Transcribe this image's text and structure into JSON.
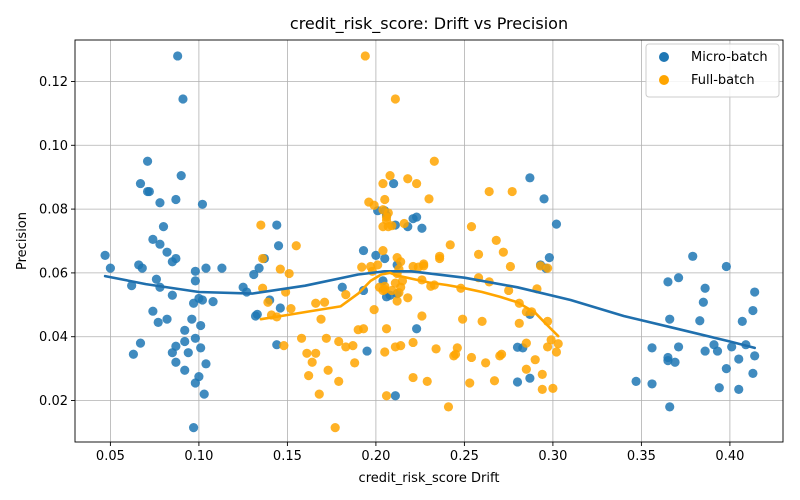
{
  "chart_data": {
    "type": "scatter",
    "title": "credit_risk_score: Drift vs Precision",
    "xlabel": "credit_risk_score Drift",
    "ylabel": "Precision",
    "xlim": [
      0.03,
      0.43
    ],
    "ylim": [
      0.007,
      0.133
    ],
    "xticks": [
      "0.05",
      "0.10",
      "0.15",
      "0.20",
      "0.25",
      "0.30",
      "0.35",
      "0.40"
    ],
    "yticks": [
      "0.02",
      "0.04",
      "0.06",
      "0.08",
      "0.10",
      "0.12"
    ],
    "grid": true,
    "legend_position": "top-right",
    "series": [
      {
        "name": "Micro-batch",
        "color": "#1f77b4",
        "trend": [
          [
            0.047,
            0.059
          ],
          [
            0.07,
            0.0565
          ],
          [
            0.1,
            0.054
          ],
          [
            0.13,
            0.0535
          ],
          [
            0.16,
            0.056
          ],
          [
            0.19,
            0.0595
          ],
          [
            0.205,
            0.0605
          ],
          [
            0.22,
            0.0605
          ],
          [
            0.25,
            0.0585
          ],
          [
            0.28,
            0.0555
          ],
          [
            0.31,
            0.0515
          ],
          [
            0.34,
            0.0465
          ],
          [
            0.37,
            0.0425
          ],
          [
            0.4,
            0.0385
          ],
          [
            0.414,
            0.0365
          ]
        ],
        "points": [
          [
            0.088,
            0.128
          ],
          [
            0.091,
            0.1145
          ],
          [
            0.071,
            0.095
          ],
          [
            0.09,
            0.0905
          ],
          [
            0.067,
            0.088
          ],
          [
            0.071,
            0.0855
          ],
          [
            0.072,
            0.0855
          ],
          [
            0.087,
            0.083
          ],
          [
            0.078,
            0.082
          ],
          [
            0.102,
            0.0815
          ],
          [
            0.08,
            0.0745
          ],
          [
            0.074,
            0.0705
          ],
          [
            0.078,
            0.069
          ],
          [
            0.082,
            0.0665
          ],
          [
            0.047,
            0.0655
          ],
          [
            0.087,
            0.0645
          ],
          [
            0.085,
            0.0635
          ],
          [
            0.066,
            0.0625
          ],
          [
            0.068,
            0.0615
          ],
          [
            0.05,
            0.0615
          ],
          [
            0.098,
            0.0605
          ],
          [
            0.104,
            0.0615
          ],
          [
            0.113,
            0.0615
          ],
          [
            0.076,
            0.058
          ],
          [
            0.098,
            0.0575
          ],
          [
            0.062,
            0.056
          ],
          [
            0.078,
            0.0555
          ],
          [
            0.085,
            0.053
          ],
          [
            0.1,
            0.052
          ],
          [
            0.097,
            0.0505
          ],
          [
            0.102,
            0.0515
          ],
          [
            0.108,
            0.051
          ],
          [
            0.074,
            0.048
          ],
          [
            0.082,
            0.0455
          ],
          [
            0.096,
            0.0455
          ],
          [
            0.077,
            0.0445
          ],
          [
            0.101,
            0.0435
          ],
          [
            0.092,
            0.042
          ],
          [
            0.098,
            0.0395
          ],
          [
            0.067,
            0.038
          ],
          [
            0.092,
            0.0385
          ],
          [
            0.087,
            0.037
          ],
          [
            0.101,
            0.0365
          ],
          [
            0.085,
            0.035
          ],
          [
            0.094,
            0.035
          ],
          [
            0.063,
            0.0345
          ],
          [
            0.087,
            0.032
          ],
          [
            0.104,
            0.0315
          ],
          [
            0.092,
            0.0295
          ],
          [
            0.1,
            0.0275
          ],
          [
            0.098,
            0.0255
          ],
          [
            0.103,
            0.022
          ],
          [
            0.097,
            0.0115
          ],
          [
            0.144,
            0.075
          ],
          [
            0.145,
            0.0685
          ],
          [
            0.137,
            0.0645
          ],
          [
            0.134,
            0.0615
          ],
          [
            0.131,
            0.0595
          ],
          [
            0.125,
            0.0555
          ],
          [
            0.127,
            0.054
          ],
          [
            0.14,
            0.0515
          ],
          [
            0.146,
            0.049
          ],
          [
            0.132,
            0.0465
          ],
          [
            0.133,
            0.047
          ],
          [
            0.144,
            0.0375
          ],
          [
            0.193,
            0.067
          ],
          [
            0.181,
            0.0555
          ],
          [
            0.193,
            0.0545
          ],
          [
            0.195,
            0.0355
          ],
          [
            0.201,
            0.0795
          ],
          [
            0.205,
            0.0795
          ],
          [
            0.206,
            0.078
          ],
          [
            0.21,
            0.088
          ],
          [
            0.211,
            0.075
          ],
          [
            0.218,
            0.0745
          ],
          [
            0.221,
            0.077
          ],
          [
            0.223,
            0.0775
          ],
          [
            0.226,
            0.074
          ],
          [
            0.2,
            0.0655
          ],
          [
            0.205,
            0.0645
          ],
          [
            0.212,
            0.0625
          ],
          [
            0.204,
            0.0575
          ],
          [
            0.206,
            0.0525
          ],
          [
            0.208,
            0.053
          ],
          [
            0.212,
            0.0535
          ],
          [
            0.223,
            0.0425
          ],
          [
            0.211,
            0.0215
          ],
          [
            0.287,
            0.0898
          ],
          [
            0.295,
            0.0832
          ],
          [
            0.302,
            0.0753
          ],
          [
            0.298,
            0.0648
          ],
          [
            0.293,
            0.0625
          ],
          [
            0.296,
            0.0615
          ],
          [
            0.287,
            0.047
          ],
          [
            0.28,
            0.0367
          ],
          [
            0.283,
            0.0365
          ],
          [
            0.287,
            0.027
          ],
          [
            0.28,
            0.0258
          ],
          [
            0.379,
            0.0652
          ],
          [
            0.365,
            0.0572
          ],
          [
            0.371,
            0.0585
          ],
          [
            0.398,
            0.062
          ],
          [
            0.386,
            0.0552
          ],
          [
            0.385,
            0.0508
          ],
          [
            0.413,
            0.0482
          ],
          [
            0.414,
            0.054
          ],
          [
            0.407,
            0.0448
          ],
          [
            0.383,
            0.045
          ],
          [
            0.366,
            0.0455
          ],
          [
            0.356,
            0.0365
          ],
          [
            0.371,
            0.0368
          ],
          [
            0.391,
            0.0375
          ],
          [
            0.386,
            0.0355
          ],
          [
            0.393,
            0.0355
          ],
          [
            0.401,
            0.0368
          ],
          [
            0.409,
            0.0375
          ],
          [
            0.365,
            0.0335
          ],
          [
            0.365,
            0.0325
          ],
          [
            0.369,
            0.032
          ],
          [
            0.405,
            0.033
          ],
          [
            0.414,
            0.034
          ],
          [
            0.398,
            0.03
          ],
          [
            0.413,
            0.0285
          ],
          [
            0.347,
            0.026
          ],
          [
            0.356,
            0.0252
          ],
          [
            0.394,
            0.024
          ],
          [
            0.405,
            0.0235
          ],
          [
            0.366,
            0.018
          ]
        ]
      },
      {
        "name": "Full-batch",
        "color": "#ffa500",
        "trend": [
          [
            0.135,
            0.0455
          ],
          [
            0.15,
            0.0468
          ],
          [
            0.165,
            0.0482
          ],
          [
            0.18,
            0.0495
          ],
          [
            0.19,
            0.0535
          ],
          [
            0.197,
            0.0575
          ],
          [
            0.203,
            0.0595
          ],
          [
            0.208,
            0.06
          ],
          [
            0.212,
            0.0592
          ],
          [
            0.22,
            0.0582
          ],
          [
            0.23,
            0.057
          ],
          [
            0.24,
            0.0562
          ],
          [
            0.25,
            0.0552
          ],
          [
            0.26,
            0.054
          ],
          [
            0.27,
            0.0525
          ],
          [
            0.28,
            0.0508
          ],
          [
            0.29,
            0.0475
          ],
          [
            0.297,
            0.0435
          ],
          [
            0.303,
            0.0402
          ]
        ],
        "points": [
          [
            0.194,
            0.128
          ],
          [
            0.211,
            0.1145
          ],
          [
            0.233,
            0.095
          ],
          [
            0.208,
            0.0905
          ],
          [
            0.218,
            0.0895
          ],
          [
            0.204,
            0.088
          ],
          [
            0.223,
            0.088
          ],
          [
            0.264,
            0.0855
          ],
          [
            0.277,
            0.0855
          ],
          [
            0.23,
            0.0832
          ],
          [
            0.205,
            0.083
          ],
          [
            0.196,
            0.0822
          ],
          [
            0.199,
            0.0812
          ],
          [
            0.204,
            0.0798
          ],
          [
            0.207,
            0.0788
          ],
          [
            0.206,
            0.0775
          ],
          [
            0.206,
            0.0765
          ],
          [
            0.216,
            0.0755
          ],
          [
            0.209,
            0.0748
          ],
          [
            0.135,
            0.075
          ],
          [
            0.204,
            0.0745
          ],
          [
            0.207,
            0.0745
          ],
          [
            0.254,
            0.0745
          ],
          [
            0.268,
            0.0702
          ],
          [
            0.242,
            0.0688
          ],
          [
            0.155,
            0.0685
          ],
          [
            0.204,
            0.067
          ],
          [
            0.272,
            0.0665
          ],
          [
            0.258,
            0.0658
          ],
          [
            0.212,
            0.0648
          ],
          [
            0.236,
            0.0652
          ],
          [
            0.236,
            0.0645
          ],
          [
            0.136,
            0.0645
          ],
          [
            0.214,
            0.0635
          ],
          [
            0.227,
            0.0628
          ],
          [
            0.201,
            0.0625
          ],
          [
            0.227,
            0.0622
          ],
          [
            0.221,
            0.062
          ],
          [
            0.224,
            0.0618
          ],
          [
            0.293,
            0.0622
          ],
          [
            0.297,
            0.0615
          ],
          [
            0.276,
            0.062
          ],
          [
            0.146,
            0.0612
          ],
          [
            0.192,
            0.0618
          ],
          [
            0.197,
            0.062
          ],
          [
            0.213,
            0.0612
          ],
          [
            0.151,
            0.0598
          ],
          [
            0.198,
            0.0605
          ],
          [
            0.212,
            0.0598
          ],
          [
            0.258,
            0.0585
          ],
          [
            0.226,
            0.0578
          ],
          [
            0.215,
            0.0575
          ],
          [
            0.211,
            0.0568
          ],
          [
            0.264,
            0.0572
          ],
          [
            0.233,
            0.0562
          ],
          [
            0.231,
            0.0558
          ],
          [
            0.214,
            0.0555
          ],
          [
            0.202,
            0.0555
          ],
          [
            0.205,
            0.0558
          ],
          [
            0.205,
            0.0548
          ],
          [
            0.204,
            0.0545
          ],
          [
            0.291,
            0.055
          ],
          [
            0.209,
            0.0545
          ],
          [
            0.248,
            0.0552
          ],
          [
            0.136,
            0.0552
          ],
          [
            0.149,
            0.054
          ],
          [
            0.275,
            0.0545
          ],
          [
            0.213,
            0.0538
          ],
          [
            0.183,
            0.0532
          ],
          [
            0.218,
            0.0522
          ],
          [
            0.212,
            0.0512
          ],
          [
            0.166,
            0.0505
          ],
          [
            0.171,
            0.0508
          ],
          [
            0.139,
            0.0508
          ],
          [
            0.281,
            0.0505
          ],
          [
            0.152,
            0.0488
          ],
          [
            0.199,
            0.0485
          ],
          [
            0.285,
            0.0478
          ],
          [
            0.288,
            0.0478
          ],
          [
            0.141,
            0.0468
          ],
          [
            0.144,
            0.0462
          ],
          [
            0.226,
            0.0465
          ],
          [
            0.169,
            0.0455
          ],
          [
            0.249,
            0.0455
          ],
          [
            0.26,
            0.0448
          ],
          [
            0.297,
            0.0448
          ],
          [
            0.281,
            0.0442
          ],
          [
            0.19,
            0.0422
          ],
          [
            0.193,
            0.0425
          ],
          [
            0.206,
            0.0425
          ],
          [
            0.158,
            0.0395
          ],
          [
            0.172,
            0.0395
          ],
          [
            0.299,
            0.039
          ],
          [
            0.285,
            0.038
          ],
          [
            0.179,
            0.0385
          ],
          [
            0.303,
            0.0378
          ],
          [
            0.148,
            0.0372
          ],
          [
            0.183,
            0.0368
          ],
          [
            0.187,
            0.0372
          ],
          [
            0.214,
            0.0372
          ],
          [
            0.211,
            0.0368
          ],
          [
            0.234,
            0.0362
          ],
          [
            0.221,
            0.0382
          ],
          [
            0.246,
            0.0365
          ],
          [
            0.297,
            0.0368
          ],
          [
            0.161,
            0.0348
          ],
          [
            0.166,
            0.0348
          ],
          [
            0.205,
            0.0352
          ],
          [
            0.302,
            0.0352
          ],
          [
            0.245,
            0.0345
          ],
          [
            0.244,
            0.034
          ],
          [
            0.254,
            0.0335
          ],
          [
            0.271,
            0.0345
          ],
          [
            0.27,
            0.034
          ],
          [
            0.164,
            0.032
          ],
          [
            0.188,
            0.0318
          ],
          [
            0.262,
            0.0318
          ],
          [
            0.29,
            0.0328
          ],
          [
            0.173,
            0.0295
          ],
          [
            0.285,
            0.0298
          ],
          [
            0.162,
            0.0278
          ],
          [
            0.294,
            0.0282
          ],
          [
            0.221,
            0.0272
          ],
          [
            0.179,
            0.026
          ],
          [
            0.229,
            0.026
          ],
          [
            0.267,
            0.0262
          ],
          [
            0.253,
            0.0255
          ],
          [
            0.294,
            0.0235
          ],
          [
            0.3,
            0.0238
          ],
          [
            0.168,
            0.022
          ],
          [
            0.206,
            0.0215
          ],
          [
            0.241,
            0.018
          ],
          [
            0.177,
            0.0115
          ]
        ]
      }
    ]
  }
}
